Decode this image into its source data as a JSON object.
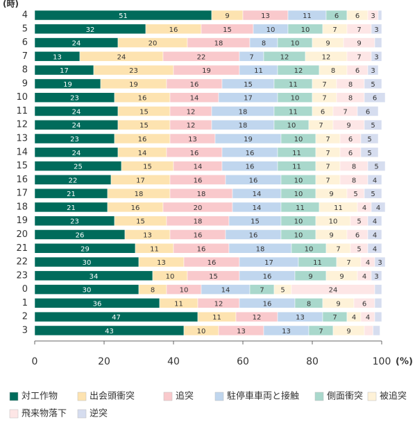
{
  "chart_data": {
    "type": "stacked-bar-horizontal",
    "y_label": "(時)",
    "x_unit": "(%)",
    "categories": [
      "4",
      "5",
      "6",
      "7",
      "8",
      "9",
      "10",
      "11",
      "12",
      "13",
      "14",
      "15",
      "16",
      "17",
      "18",
      "19",
      "20",
      "21",
      "22",
      "23",
      "0",
      "1",
      "2",
      "3"
    ],
    "xlim": [
      0,
      100
    ],
    "xticks": [
      0,
      20,
      40,
      60,
      80,
      100
    ],
    "series": [
      {
        "name": "対工作物",
        "color": "#006b5b",
        "values": [
          51,
          32,
          24,
          13,
          17,
          19,
          23,
          24,
          24,
          23,
          24,
          25,
          22,
          21,
          21,
          23,
          26,
          29,
          30,
          34,
          30,
          36,
          47,
          43
        ]
      },
      {
        "name": "出会頭衝突",
        "color": "#fde3b0",
        "values": [
          9,
          16,
          20,
          24,
          23,
          19,
          16,
          15,
          15,
          16,
          14,
          15,
          17,
          18,
          16,
          15,
          13,
          11,
          13,
          10,
          8,
          11,
          11,
          10
        ]
      },
      {
        "name": "追突",
        "color": "#f9c9cc",
        "values": [
          13,
          15,
          18,
          22,
          19,
          16,
          14,
          12,
          12,
          13,
          16,
          14,
          16,
          18,
          20,
          18,
          16,
          16,
          16,
          15,
          10,
          12,
          12,
          13
        ]
      },
      {
        "name": "駐停車車両と接触",
        "color": "#c0d6ee",
        "values": [
          11,
          10,
          8,
          7,
          11,
          15,
          17,
          18,
          18,
          19,
          16,
          16,
          16,
          14,
          14,
          15,
          16,
          18,
          17,
          16,
          14,
          16,
          13,
          13
        ]
      },
      {
        "name": "側面衝突",
        "color": "#a9d8cc",
        "values": [
          6,
          10,
          10,
          12,
          12,
          11,
          10,
          11,
          10,
          10,
          11,
          11,
          10,
          10,
          11,
          10,
          10,
          10,
          11,
          9,
          7,
          8,
          7,
          7
        ]
      },
      {
        "name": "被追突",
        "color": "#fef2d8",
        "values": [
          6,
          7,
          9,
          12,
          8,
          7,
          7,
          6,
          7,
          7,
          7,
          7,
          7,
          9,
          11,
          10,
          9,
          7,
          7,
          9,
          5,
          9,
          4,
          9
        ]
      },
      {
        "name": "飛来物落下",
        "color": "#fde6e6",
        "values": [
          3,
          7,
          9,
          7,
          6,
          8,
          8,
          7,
          9,
          6,
          6,
          8,
          8,
          5,
          4,
          5,
          6,
          5,
          4,
          4,
          24,
          6,
          4,
          2.5
        ]
      },
      {
        "name": "逆突",
        "color": "#d6ddef",
        "values": [
          1,
          3,
          2,
          3,
          3,
          5,
          6,
          6,
          5,
          5,
          5,
          5,
          4,
          5,
          4,
          4,
          4,
          4,
          3,
          3,
          2,
          2,
          2,
          2
        ]
      }
    ]
  }
}
